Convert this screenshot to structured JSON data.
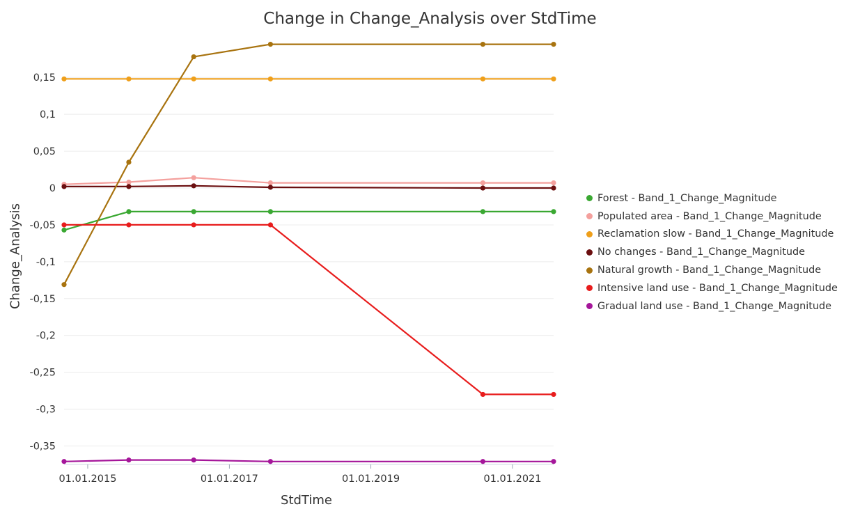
{
  "chart_data": {
    "type": "line",
    "title": "Change in Change_Analysis over StdTime",
    "xlabel": "StdTime",
    "ylabel": "Change_Analysis",
    "x": [
      "2014-09-01",
      "2015-08-01",
      "2016-07-01",
      "2017-08-01",
      "2020-08-01",
      "2021-08-01"
    ],
    "x_ticks": [
      {
        "date": "2015-01-01",
        "label": "01.01.2015"
      },
      {
        "date": "2017-01-01",
        "label": "01.01.2017"
      },
      {
        "date": "2019-01-01",
        "label": "01.01.2019"
      },
      {
        "date": "2021-01-01",
        "label": "01.01.2021"
      }
    ],
    "y_ticks": [
      {
        "value": 0.15,
        "label": "0,15"
      },
      {
        "value": 0.1,
        "label": "0,1"
      },
      {
        "value": 0.05,
        "label": "0,05"
      },
      {
        "value": 0,
        "label": "0"
      },
      {
        "value": -0.05,
        "label": "-0,05"
      },
      {
        "value": -0.1,
        "label": "-0,1"
      },
      {
        "value": -0.15,
        "label": "-0,15"
      },
      {
        "value": -0.2,
        "label": "-0,2"
      },
      {
        "value": -0.25,
        "label": "-0,25"
      },
      {
        "value": -0.3,
        "label": "-0,3"
      },
      {
        "value": -0.35,
        "label": "-0,35"
      }
    ],
    "ylim": [
      -0.375,
      0.205
    ],
    "xlim": [
      "2014-09-01",
      "2021-08-01"
    ],
    "grid": true,
    "legend_position": "right",
    "series": [
      {
        "name": "Forest - Band_1_Change_Magnitude",
        "color": "#3aa832",
        "values": [
          -0.057,
          -0.032,
          -0.032,
          -0.032,
          -0.032,
          -0.032
        ]
      },
      {
        "name": "Populated area - Band_1_Change_Magnitude",
        "color": "#f4a09d",
        "values": [
          0.005,
          0.008,
          0.014,
          0.007,
          0.007,
          0.007
        ]
      },
      {
        "name": "Reclamation slow - Band_1_Change_Magnitude",
        "color": "#ef9f1a",
        "values": [
          0.148,
          0.148,
          0.148,
          0.148,
          0.148,
          0.148
        ]
      },
      {
        "name": "No changes - Band_1_Change_Magnitude",
        "color": "#6b0f10",
        "values": [
          0.002,
          0.002,
          0.003,
          0.001,
          0.0,
          0.0
        ]
      },
      {
        "name": "Natural growth - Band_1_Change_Magnitude",
        "color": "#a8730f",
        "values": [
          -0.131,
          0.035,
          0.178,
          0.195,
          0.195,
          0.195
        ]
      },
      {
        "name": "Intensive land use - Band_1_Change_Magnitude",
        "color": "#e81c1c",
        "values": [
          -0.05,
          -0.05,
          -0.05,
          -0.05,
          -0.28,
          -0.28
        ]
      },
      {
        "name": "Gradual land use - Band_1_Change_Magnitude",
        "color": "#a5169a",
        "values": [
          -0.371,
          -0.369,
          -0.369,
          -0.371,
          -0.371,
          -0.371
        ]
      }
    ]
  }
}
